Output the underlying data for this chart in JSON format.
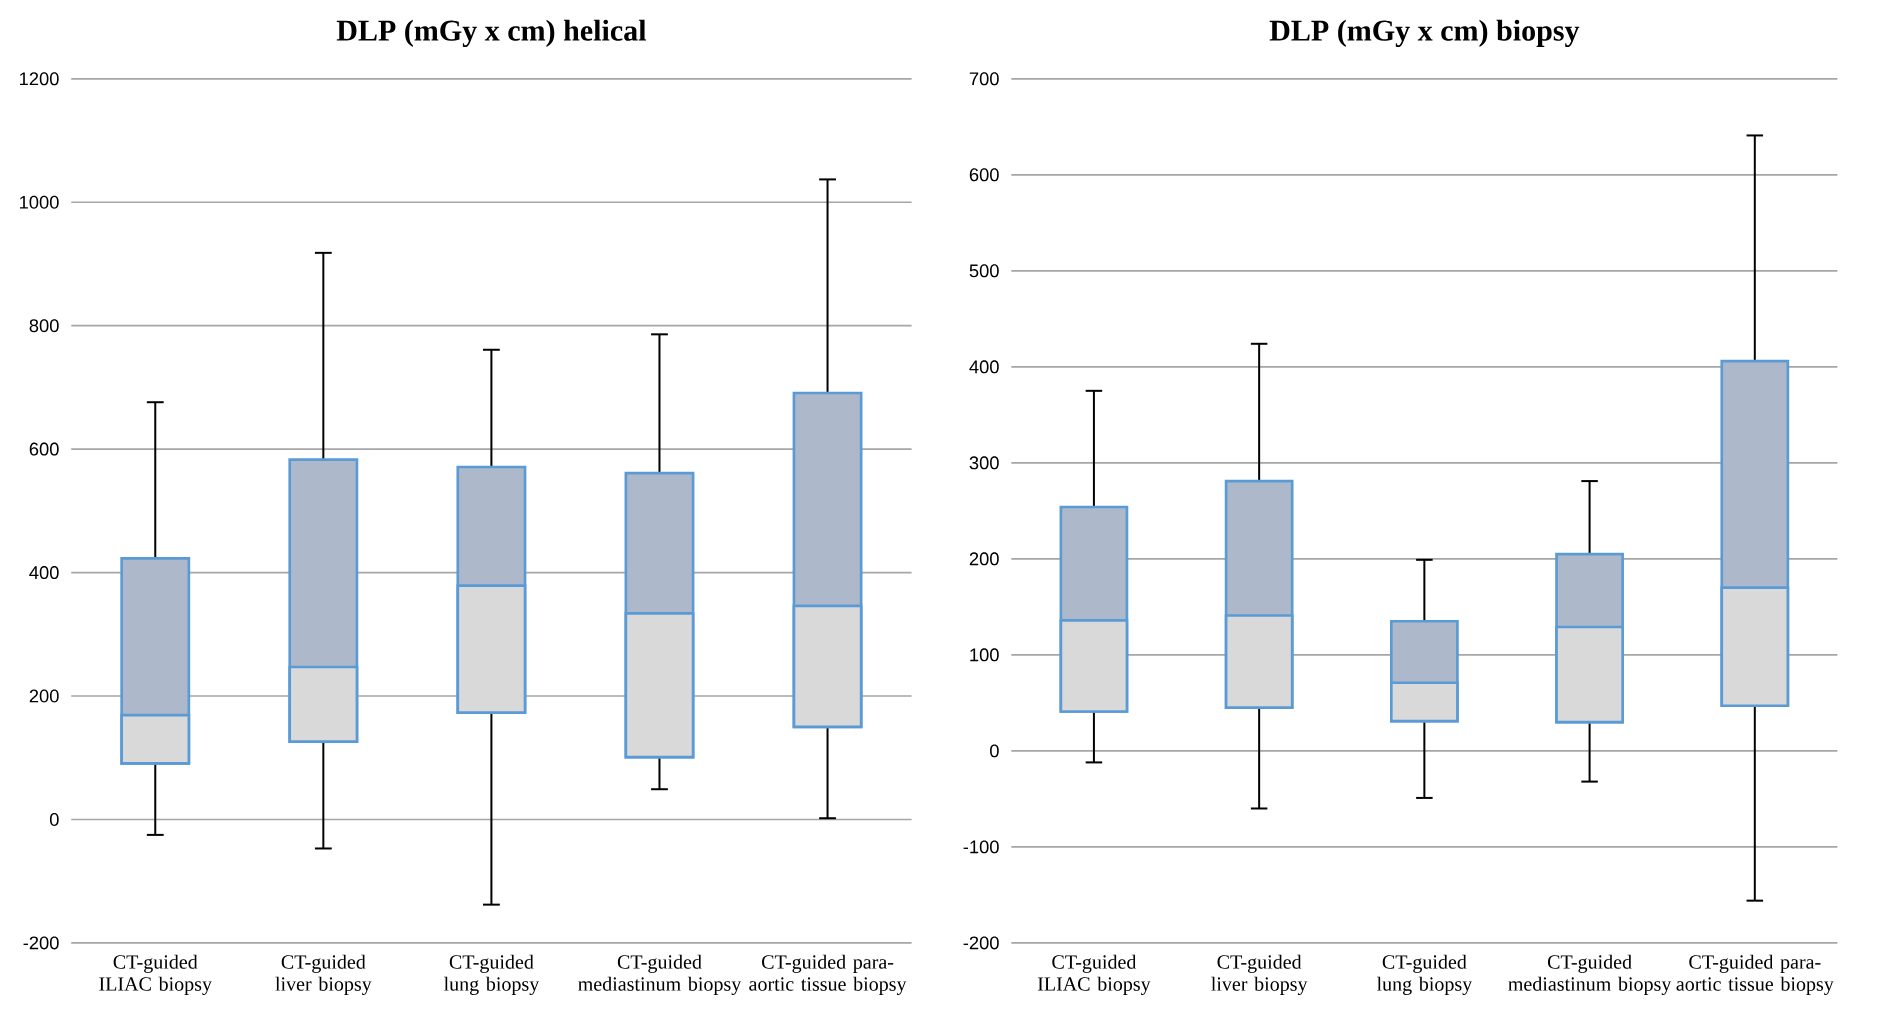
{
  "chart_data": [
    {
      "type": "box",
      "title": "DLP (mGy x cm) helical",
      "categories": [
        "CT-guided ILIAC biopsy",
        "CT-guided liver biopsy",
        "CT-guided lung biopsy",
        "CT-guided mediastinum biopsy",
        "CT-guided para-aortic tissue biopsy"
      ],
      "boxes": [
        {
          "low": -25,
          "q1": 91,
          "median": 169,
          "q3": 423,
          "high": 676
        },
        {
          "low": -47,
          "q1": 126,
          "median": 247,
          "q3": 583,
          "high": 918
        },
        {
          "low": -138,
          "q1": 173,
          "median": 379,
          "q3": 571,
          "high": 761
        },
        {
          "low": 49,
          "q1": 101,
          "median": 334,
          "q3": 561,
          "high": 786
        },
        {
          "low": 2,
          "q1": 150,
          "median": 346,
          "q3": 691,
          "high": 1037
        }
      ],
      "color": "#adb9ca",
      "ylim": [
        -200,
        1200
      ],
      "yticks": [
        -200,
        0,
        200,
        400,
        600,
        800,
        1000,
        1200
      ],
      "grid": "y"
    },
    {
      "type": "box",
      "title": "DLP (mGy x cm) biopsy",
      "categories": [
        "CT-guided ILIAC biopsy",
        "CT-guided liver biopsy",
        "CT-guided lung biopsy",
        "CT-guided mediastinum biopsy",
        "CT-guided para-aortic tissue biopsy"
      ],
      "boxes": [
        {
          "low": -12,
          "q1": 41,
          "median": 136,
          "q3": 254,
          "high": 375
        },
        {
          "low": -60,
          "q1": 45,
          "median": 141,
          "q3": 281,
          "high": 424
        },
        {
          "low": -49,
          "q1": 31,
          "median": 71,
          "q3": 135,
          "high": 199
        },
        {
          "low": -32,
          "q1": 30,
          "median": 129,
          "q3": 205,
          "high": 281
        },
        {
          "low": -156,
          "q1": 47,
          "median": 170,
          "q3": 406,
          "high": 641
        }
      ],
      "color": "#adb9ca",
      "ylim": [
        -200,
        700
      ],
      "yticks": [
        -200,
        -100,
        0,
        100,
        200,
        300,
        400,
        500,
        600,
        700
      ],
      "grid": "y"
    }
  ]
}
